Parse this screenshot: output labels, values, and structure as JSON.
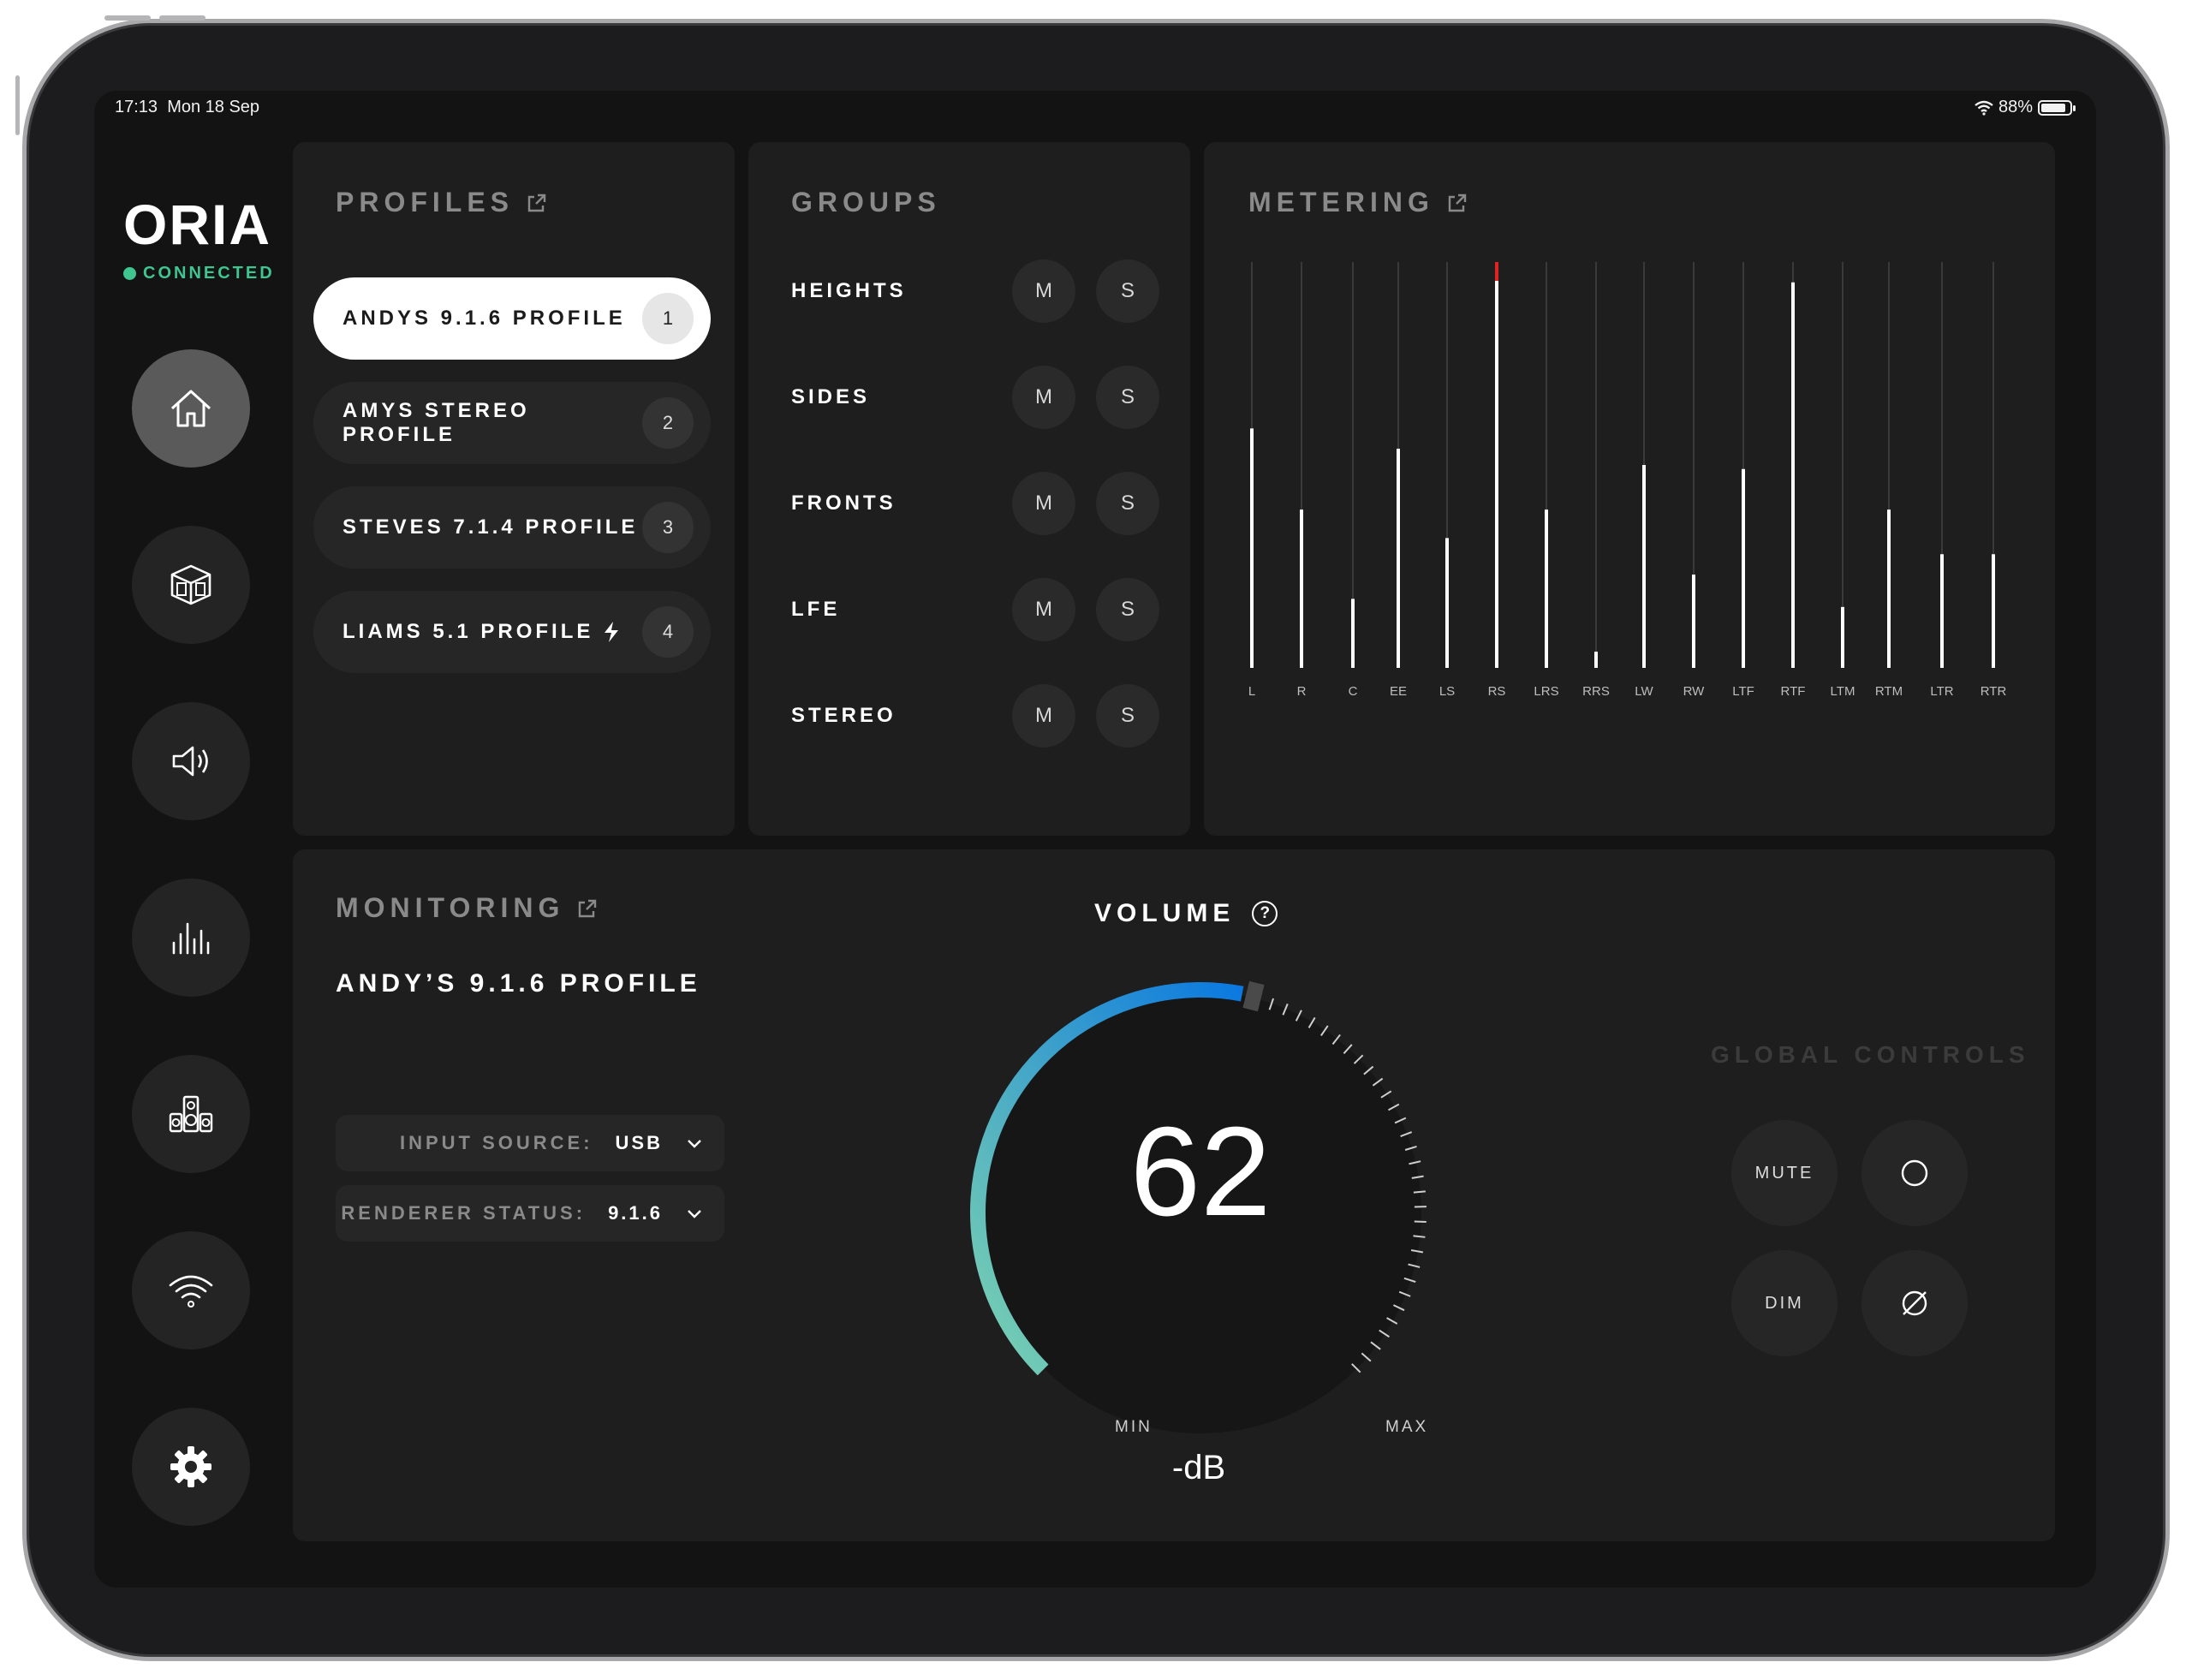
{
  "status_bar": {
    "time": "17:13",
    "date": "Mon 18 Sep",
    "battery": "88%",
    "battery_level": 0.88
  },
  "brand": {
    "name": "ORIA",
    "connection": "CONNECTED",
    "connection_color": "#3fc58f"
  },
  "nav": [
    {
      "icon": "home-icon",
      "active": true
    },
    {
      "icon": "room-3d-icon",
      "active": false
    },
    {
      "icon": "speaker-volume-icon",
      "active": false
    },
    {
      "icon": "equalizer-icon",
      "active": false
    },
    {
      "icon": "speakers-icon",
      "active": false
    },
    {
      "icon": "wifi-icon",
      "active": false
    },
    {
      "icon": "gear-icon",
      "active": false
    }
  ],
  "profiles": {
    "title": "PROFILES",
    "items": [
      {
        "label": "ANDYS 9.1.6 PROFILE",
        "num": "1",
        "active": true
      },
      {
        "label": "AMYS STEREO PROFILE",
        "num": "2",
        "active": false
      },
      {
        "label": "STEVES 7.1.4 PROFILE",
        "num": "3",
        "active": false
      },
      {
        "label": "LIAMS 5.1 PROFILE",
        "num": "4",
        "active": false,
        "icon": "bolt-icon"
      }
    ]
  },
  "groups": {
    "title": "GROUPS",
    "mute_label": "M",
    "solo_label": "S",
    "items": [
      "HEIGHTS",
      "SIDES",
      "FRONTS",
      "LFE",
      "STEREO"
    ]
  },
  "metering": {
    "title": "METERING",
    "peak_color": "#e02424",
    "channels": [
      {
        "label": "L",
        "level": 0.59
      },
      {
        "label": "R",
        "level": 0.39
      },
      {
        "label": "C",
        "level": 0.17
      },
      {
        "label": "EE",
        "level": 0.54
      },
      {
        "label": "LS",
        "level": 0.32
      },
      {
        "label": "RS",
        "level": 1.0,
        "peak": true
      },
      {
        "label": "LRS",
        "level": 0.39
      },
      {
        "label": "RRS",
        "level": 0.04
      },
      {
        "label": "LW",
        "level": 0.5
      },
      {
        "label": "RW",
        "level": 0.23
      },
      {
        "label": "LTF",
        "level": 0.49
      },
      {
        "label": "RTF",
        "level": 0.95
      },
      {
        "label": "LTM",
        "level": 0.15
      },
      {
        "label": "RTM",
        "level": 0.39
      },
      {
        "label": "LTR",
        "level": 0.28
      },
      {
        "label": "RTR",
        "level": 0.28
      }
    ]
  },
  "monitoring": {
    "title": "MONITORING",
    "profile_name": "ANDY’S 9.1.6 PROFILE",
    "input_source_label": "INPUT SOURCE:",
    "input_source_value": "USB",
    "renderer_status_label": "RENDERER STATUS:",
    "renderer_status_value": "9.1.6"
  },
  "volume": {
    "title": "VOLUME",
    "help": "?",
    "value": "62",
    "unit": "-dB",
    "min_label": "MIN",
    "max_label": "MAX",
    "fill_fraction": 0.54,
    "gradient_start": "#7dd3b0",
    "gradient_end": "#0a78e0"
  },
  "global_controls": {
    "title": "GLOBAL CONTROLS",
    "mute_label": "MUTE",
    "dim_label": "DIM",
    "circle_icon": "circle-icon",
    "phase_icon": "phase-invert-icon"
  }
}
